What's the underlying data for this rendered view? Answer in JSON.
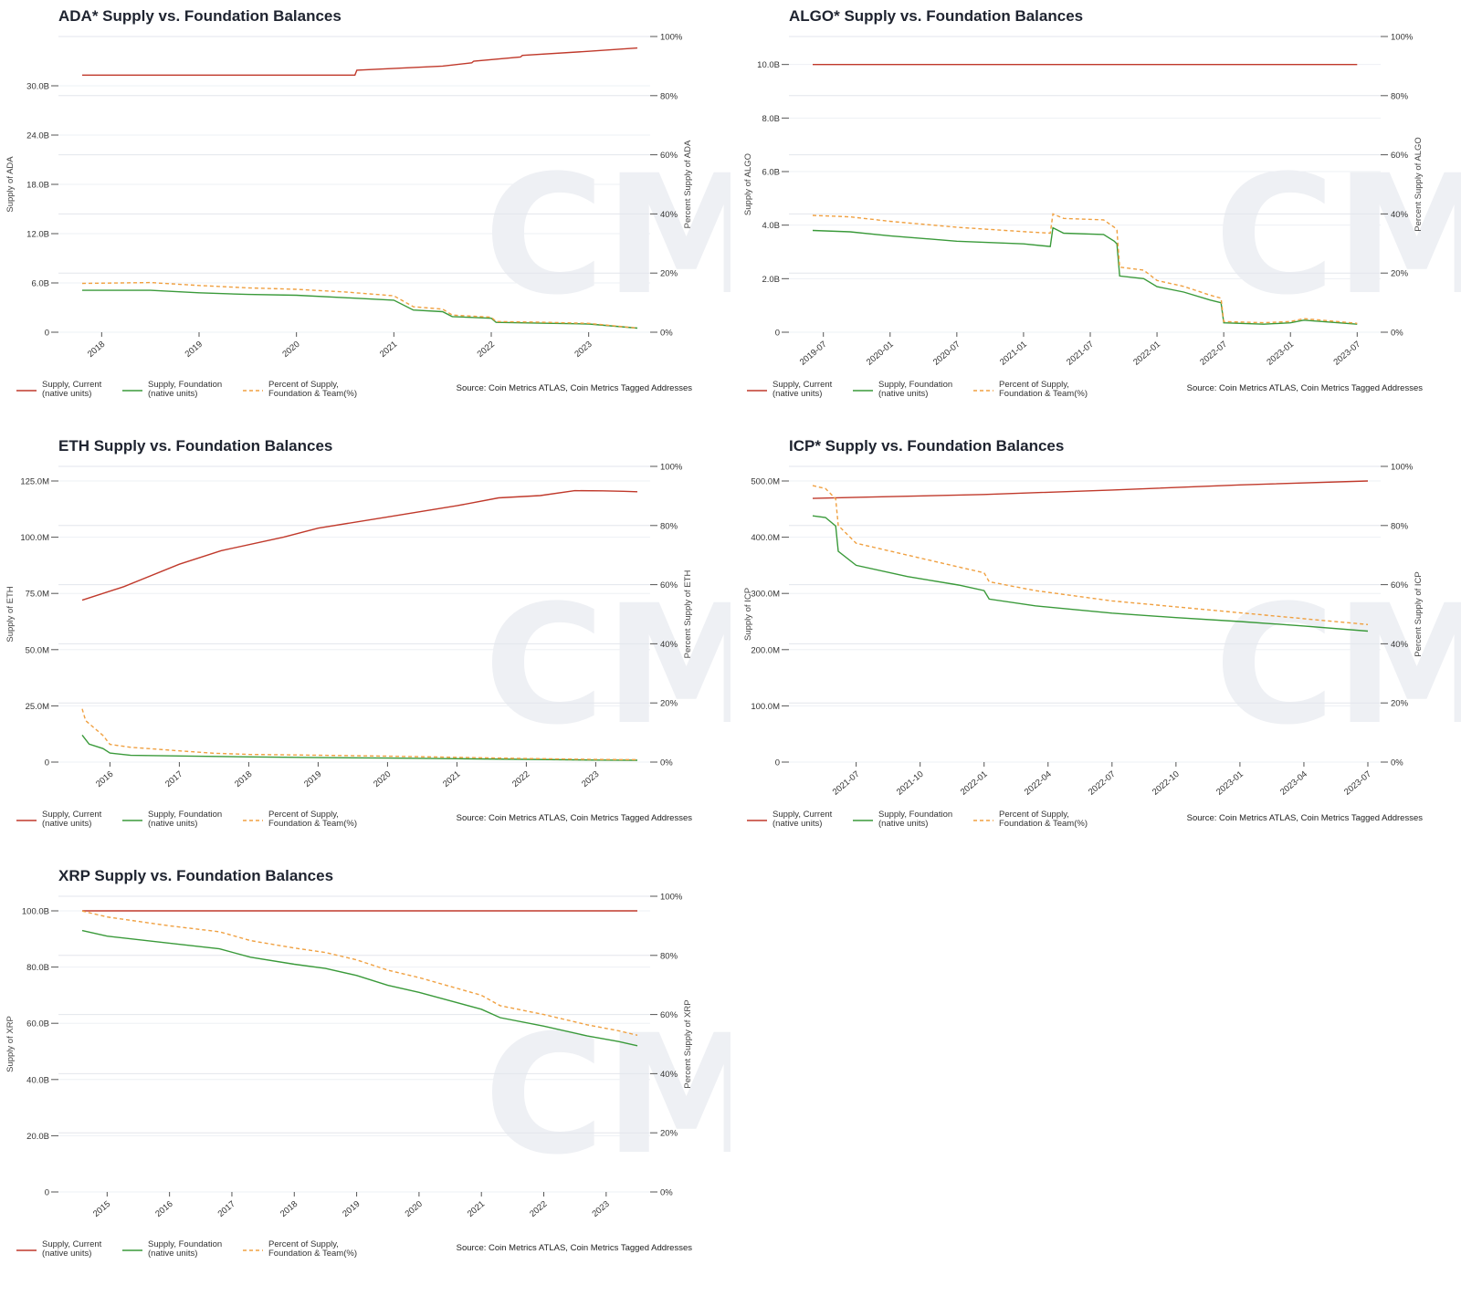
{
  "chart_data": [
    {
      "id": "ada",
      "type": "line",
      "title": "ADA* Supply vs. Foundation Balances",
      "ylabel": "Supply of ADA",
      "y2label": "Percent Supply of ADA",
      "ylim": [
        0,
        36000000000
      ],
      "yticks": [
        0,
        6000000000,
        12000000000,
        18000000000,
        24000000000,
        30000000000
      ],
      "ytick_labels": [
        "0",
        "6.0B",
        "12.0B",
        "18.0B",
        "24.0B",
        "30.0B"
      ],
      "y2lim": [
        0,
        100
      ],
      "y2ticks": [
        0,
        20,
        40,
        60,
        80,
        100
      ],
      "y2tick_labels": [
        "0%",
        "20%",
        "40%",
        "60%",
        "80%",
        "100%"
      ],
      "xlim": [
        2017.8,
        2023.5
      ],
      "xticks": [
        2018,
        2019,
        2020,
        2021,
        2022,
        2023
      ],
      "xtick_labels": [
        "2018",
        "2019",
        "2020",
        "2021",
        "2022",
        "2023"
      ],
      "series": [
        {
          "name": "Supply, Current (native units)",
          "axis": "left",
          "color": "#c0392b",
          "dash": "",
          "x": [
            2017.8,
            2020.6,
            2020.62,
            2021.5,
            2021.8,
            2021.82,
            2022.3,
            2022.32,
            2023.0,
            2023.5
          ],
          "y": [
            31300000000,
            31300000000,
            31900000000,
            32400000000,
            32800000000,
            33000000000,
            33500000000,
            33700000000,
            34200000000,
            34600000000
          ]
        },
        {
          "name": "Supply, Foundation (native units)",
          "axis": "left",
          "color": "#3a9a3a",
          "dash": "",
          "x": [
            2017.8,
            2018.5,
            2019.0,
            2019.5,
            2020.0,
            2020.5,
            2021.0,
            2021.2,
            2021.5,
            2021.6,
            2022.0,
            2022.05,
            2022.5,
            2023.0,
            2023.5
          ],
          "y": [
            5100000000,
            5100000000,
            4800000000,
            4600000000,
            4500000000,
            4200000000,
            3900000000,
            2700000000,
            2500000000,
            1900000000,
            1700000000,
            1200000000,
            1100000000,
            1000000000,
            500000000
          ]
        },
        {
          "name": "Percent of Supply, Foundation & Team(%)",
          "axis": "right",
          "color": "#f0a040",
          "dash": "4,3",
          "x": [
            2017.8,
            2018.5,
            2019.0,
            2019.5,
            2020.0,
            2020.5,
            2021.0,
            2021.2,
            2021.5,
            2021.6,
            2022.0,
            2022.05,
            2022.5,
            2023.0,
            2023.5
          ],
          "y": [
            16.5,
            16.8,
            15.8,
            15.0,
            14.5,
            13.6,
            12.3,
            8.6,
            7.8,
            5.8,
            5.1,
            3.6,
            3.4,
            3.0,
            1.4
          ]
        }
      ],
      "legend": [
        "Supply, Current\n(native units)",
        "Supply, Foundation\n(native units)",
        "Percent of Supply,\nFoundation & Team(%)"
      ],
      "source": "Source: Coin Metrics ATLAS, Coin Metrics Tagged Addresses"
    },
    {
      "id": "algo",
      "type": "line",
      "title": "ALGO* Supply vs. Foundation Balances",
      "ylabel": "Supply of ALGO",
      "y2label": "Percent Supply of ALGO",
      "ylim": [
        0,
        10500000000
      ],
      "yticks": [
        0,
        2000000000,
        4000000000,
        6000000000,
        8000000000,
        10000000000
      ],
      "ytick_labels": [
        "0",
        "2.0B",
        "4.0B",
        "6.0B",
        "8.0B",
        "10.0B"
      ],
      "y2lim": [
        0,
        100
      ],
      "y2ticks": [
        0,
        20,
        40,
        60,
        80,
        100
      ],
      "y2tick_labels": [
        "0%",
        "20%",
        "40%",
        "60%",
        "80%",
        "100%"
      ],
      "xlim": [
        2019.42,
        2023.58
      ],
      "xticks": [
        2019.5,
        2020.0,
        2020.5,
        2021.0,
        2021.5,
        2022.0,
        2022.5,
        2023.0,
        2023.5
      ],
      "xtick_labels": [
        "2019-07",
        "2020-01",
        "2020-07",
        "2021-01",
        "2021-07",
        "2022-01",
        "2022-07",
        "2023-01",
        "2023-07"
      ],
      "series": [
        {
          "name": "Supply, Current (native units)",
          "axis": "left",
          "color": "#c0392b",
          "dash": "",
          "x": [
            2019.42,
            2023.5
          ],
          "y": [
            10000000000,
            10000000000
          ]
        },
        {
          "name": "Supply, Foundation (native units)",
          "axis": "left",
          "color": "#3a9a3a",
          "dash": "",
          "x": [
            2019.42,
            2019.7,
            2020.0,
            2020.5,
            2021.0,
            2021.2,
            2021.22,
            2021.3,
            2021.6,
            2021.68,
            2021.7,
            2021.72,
            2021.9,
            2022.0,
            2022.2,
            2022.4,
            2022.48,
            2022.5,
            2022.8,
            2023.0,
            2023.1,
            2023.5
          ],
          "y": [
            3800000000,
            3750000000,
            3600000000,
            3400000000,
            3300000000,
            3200000000,
            3900000000,
            3700000000,
            3650000000,
            3400000000,
            3300000000,
            2100000000,
            2000000000,
            1700000000,
            1500000000,
            1200000000,
            1100000000,
            350000000,
            300000000,
            350000000,
            450000000,
            300000000
          ]
        },
        {
          "name": "Percent of Supply, Foundation & Team(%)",
          "axis": "right",
          "color": "#f0a040",
          "dash": "4,3",
          "x": [
            2019.42,
            2019.7,
            2020.0,
            2020.5,
            2021.0,
            2021.2,
            2021.22,
            2021.3,
            2021.6,
            2021.68,
            2021.7,
            2021.72,
            2021.9,
            2022.0,
            2022.2,
            2022.4,
            2022.48,
            2022.5,
            2022.8,
            2023.0,
            2023.1,
            2023.5
          ],
          "y": [
            39.5,
            39.0,
            37.5,
            35.5,
            34.0,
            33.5,
            40.0,
            38.5,
            38.0,
            35.5,
            34.5,
            22.0,
            21.0,
            17.5,
            15.5,
            12.5,
            11.5,
            3.6,
            3.2,
            3.6,
            4.6,
            3.0
          ]
        }
      ],
      "legend": [
        "Supply, Current\n(native units)",
        "Supply, Foundation\n(native units)",
        "Percent of Supply,\nFoundation & Team(%)"
      ],
      "source": "Source: Coin Metrics ATLAS, Coin Metrics Tagged Addresses"
    },
    {
      "id": "eth",
      "type": "line",
      "title": "ETH Supply vs. Foundation Balances",
      "ylabel": "Supply of ETH",
      "y2label": "Percent Supply of ETH",
      "ylim": [
        0,
        125000000
      ],
      "yticks": [
        0,
        25000000,
        50000000,
        75000000,
        100000000,
        125000000
      ],
      "ytick_labels": [
        "0",
        "25.0M",
        "50.0M",
        "75.0M",
        "100.0M",
        "125.0M"
      ],
      "y2lim": [
        0,
        100
      ],
      "y2ticks": [
        0,
        20,
        40,
        60,
        80,
        100
      ],
      "y2tick_labels": [
        "0%",
        "20%",
        "40%",
        "60%",
        "80%",
        "100%"
      ],
      "xlim": [
        2015.6,
        2023.6
      ],
      "xticks": [
        2016,
        2017,
        2018,
        2019,
        2020,
        2021,
        2022,
        2023
      ],
      "xtick_labels": [
        "2016",
        "2017",
        "2018",
        "2019",
        "2020",
        "2021",
        "2022",
        "2023"
      ],
      "series": [
        {
          "name": "Supply, Current (native units)",
          "axis": "left",
          "color": "#c0392b",
          "dash": "",
          "x": [
            2015.6,
            2016.2,
            2017.0,
            2017.6,
            2018.5,
            2019.0,
            2020.0,
            2021.0,
            2021.6,
            2022.2,
            2022.7,
            2023.1,
            2023.4,
            2023.6
          ],
          "y": [
            72000000,
            78000000,
            88000000,
            94000000,
            100000000,
            104000000,
            109000000,
            114000000,
            117500000,
            118500000,
            120700000,
            120600000,
            120400000,
            120200000
          ]
        },
        {
          "name": "Supply, Foundation (native units)",
          "axis": "left",
          "color": "#3a9a3a",
          "dash": "",
          "x": [
            2015.6,
            2015.7,
            2015.9,
            2016.0,
            2016.3,
            2017.0,
            2018.0,
            2019.0,
            2020.0,
            2021.0,
            2022.0,
            2023.0,
            2023.6
          ],
          "y": [
            12000000,
            8000000,
            6000000,
            4000000,
            3000000,
            2700000,
            2300000,
            2000000,
            1800000,
            1500000,
            1200000,
            900000,
            800000
          ]
        },
        {
          "name": "Percent of Supply, Foundation & Team(%)",
          "axis": "right",
          "color": "#f0a040",
          "dash": "4,3",
          "x": [
            2015.6,
            2015.65,
            2015.75,
            2015.9,
            2016.0,
            2016.3,
            2017.0,
            2017.5,
            2018.0,
            2019.0,
            2020.0,
            2021.0,
            2022.0,
            2023.0,
            2023.6
          ],
          "y": [
            18,
            14,
            12,
            9,
            6,
            5,
            3.8,
            3.0,
            2.6,
            2.3,
            2.0,
            1.6,
            1.2,
            0.9,
            0.8
          ]
        }
      ],
      "legend": [
        "Supply, Current\n(native units)",
        "Supply, Foundation\n(native units)",
        "Percent of Supply,\nFoundation & Team(%)"
      ],
      "source": "Source: Coin Metrics ATLAS, Coin Metrics Tagged Addresses"
    },
    {
      "id": "icp",
      "type": "line",
      "title": "ICP* Supply vs. Foundation Balances",
      "ylabel": "Supply of ICP",
      "y2label": "Percent Supply of ICP",
      "ylim": [
        0,
        500000000
      ],
      "yticks": [
        0,
        100000000,
        200000000,
        300000000,
        400000000,
        500000000
      ],
      "ytick_labels": [
        "0",
        "100.0M",
        "200.0M",
        "300.0M",
        "400.0M",
        "500.0M"
      ],
      "y2lim": [
        0,
        100
      ],
      "y2ticks": [
        0,
        20,
        40,
        60,
        80,
        100
      ],
      "y2tick_labels": [
        "0%",
        "20%",
        "40%",
        "60%",
        "80%",
        "100%"
      ],
      "xlim": [
        2021.33,
        2023.5
      ],
      "xticks": [
        2021.5,
        2021.75,
        2022.0,
        2022.25,
        2022.5,
        2022.75,
        2023.0,
        2023.25,
        2023.5
      ],
      "xtick_labels": [
        "2021-07",
        "2021-10",
        "2022-01",
        "2022-04",
        "2022-07",
        "2022-10",
        "2023-01",
        "2023-04",
        "2023-07"
      ],
      "series": [
        {
          "name": "Supply, Current (native units)",
          "axis": "left",
          "color": "#c0392b",
          "dash": "",
          "x": [
            2021.33,
            2021.5,
            2022.0,
            2022.5,
            2023.0,
            2023.5
          ],
          "y": [
            469000000,
            471000000,
            476000000,
            484000000,
            493000000,
            500000000
          ]
        },
        {
          "name": "Supply, Foundation (native units)",
          "axis": "left",
          "color": "#3a9a3a",
          "dash": "",
          "x": [
            2021.33,
            2021.38,
            2021.42,
            2021.43,
            2021.5,
            2021.7,
            2021.9,
            2022.0,
            2022.02,
            2022.2,
            2022.5,
            2022.75,
            2023.0,
            2023.25,
            2023.5
          ],
          "y": [
            438000000,
            435000000,
            420000000,
            375000000,
            350000000,
            330000000,
            315000000,
            305000000,
            290000000,
            278000000,
            265000000,
            257000000,
            250000000,
            242000000,
            233000000
          ]
        },
        {
          "name": "Percent of Supply, Foundation & Team(%)",
          "axis": "right",
          "color": "#f0a040",
          "dash": "4,3",
          "x": [
            2021.33,
            2021.38,
            2021.42,
            2021.43,
            2021.5,
            2021.7,
            2021.9,
            2022.0,
            2022.02,
            2022.2,
            2022.5,
            2022.75,
            2023.0,
            2023.25,
            2023.5
          ],
          "y": [
            93.5,
            92.5,
            89,
            80,
            74,
            70,
            66,
            64,
            61,
            58,
            54.5,
            52.5,
            50.5,
            48.5,
            46.5
          ]
        }
      ],
      "legend": [
        "Supply, Current\n(native units)",
        "Supply, Foundation\n(native units)",
        "Percent of Supply,\nFoundation & Team(%)"
      ],
      "source": "Source: Coin Metrics ATLAS, Coin Metrics Tagged Addresses"
    },
    {
      "id": "xrp",
      "type": "line",
      "title": "XRP Supply vs. Foundation Balances",
      "ylabel": "Supply of XRP",
      "y2label": "Percent Supply of XRP",
      "ylim": [
        0,
        100000000000
      ],
      "yticks": [
        0,
        20000000000,
        40000000000,
        60000000000,
        80000000000,
        100000000000
      ],
      "ytick_labels": [
        "0",
        "20.0B",
        "40.0B",
        "60.0B",
        "80.0B",
        "100.0B"
      ],
      "y2lim": [
        0,
        100
      ],
      "y2ticks": [
        0,
        20,
        40,
        60,
        80,
        100
      ],
      "y2tick_labels": [
        "0%",
        "20%",
        "40%",
        "60%",
        "80%",
        "100%"
      ],
      "xlim": [
        2014.6,
        2023.5
      ],
      "xticks": [
        2015,
        2016,
        2017,
        2018,
        2019,
        2020,
        2021,
        2022,
        2023
      ],
      "xtick_labels": [
        "2015",
        "2016",
        "2017",
        "2018",
        "2019",
        "2020",
        "2021",
        "2022",
        "2023"
      ],
      "series": [
        {
          "name": "Supply, Current (native units)",
          "axis": "left",
          "color": "#c0392b",
          "dash": "",
          "x": [
            2014.6,
            2023.5
          ],
          "y": [
            100000000000,
            100000000000
          ]
        },
        {
          "name": "Supply, Foundation (native units)",
          "axis": "left",
          "color": "#3a9a3a",
          "dash": "",
          "x": [
            2014.6,
            2015.0,
            2016.0,
            2016.8,
            2017.3,
            2018.0,
            2018.5,
            2019.0,
            2019.5,
            2020.0,
            2020.5,
            2021.0,
            2021.3,
            2022.0,
            2022.7,
            2023.2,
            2023.5
          ],
          "y": [
            93000000000,
            91000000000,
            88500000000,
            86500000000,
            83500000000,
            81000000000,
            79500000000,
            77000000000,
            73500000000,
            71000000000,
            68000000000,
            65000000000,
            62000000000,
            59000000000,
            55500000000,
            53500000000,
            52000000000
          ]
        },
        {
          "name": "Percent of Supply, Foundation & Team(%)",
          "axis": "right",
          "color": "#f0a040",
          "dash": "4,3",
          "x": [
            2014.6,
            2015.0,
            2016.0,
            2016.8,
            2017.3,
            2018.0,
            2018.5,
            2019.0,
            2019.5,
            2020.0,
            2020.5,
            2021.0,
            2021.3,
            2022.0,
            2022.7,
            2023.2,
            2023.5
          ],
          "y": [
            95,
            93,
            90,
            88,
            85,
            82.5,
            81,
            78.5,
            75,
            72.5,
            69.5,
            66.5,
            63,
            60,
            56.5,
            54.5,
            53
          ]
        }
      ],
      "legend": [
        "Supply, Current\n(native units)",
        "Supply, Foundation\n(native units)",
        "Percent of Supply,\nFoundation & Team(%)"
      ],
      "source": "Source: Coin Metrics ATLAS, Coin Metrics Tagged Addresses"
    }
  ]
}
